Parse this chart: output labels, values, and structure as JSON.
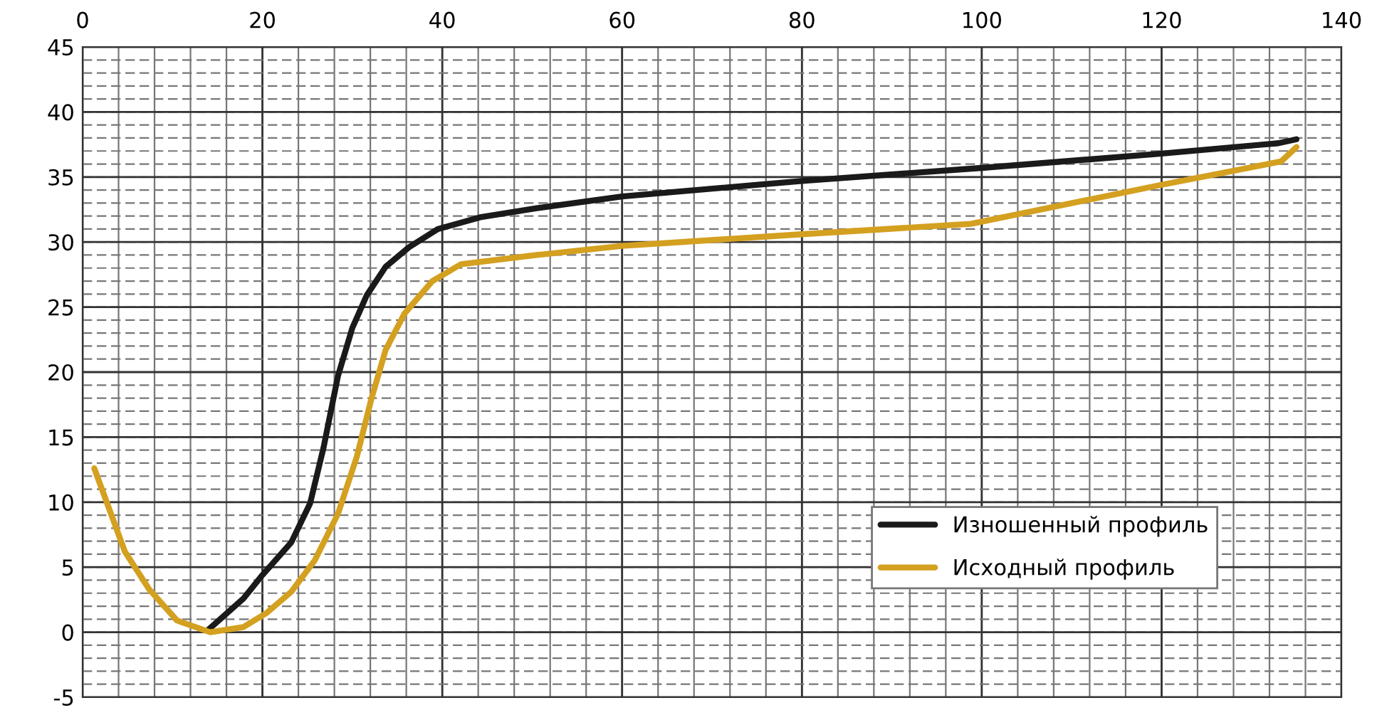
{
  "chart_data": {
    "type": "line",
    "xlim": [
      0,
      140
    ],
    "ylim": [
      -5,
      45
    ],
    "xticks": [
      0,
      20,
      40,
      60,
      80,
      100,
      120,
      140
    ],
    "yticks": [
      -5,
      0,
      5,
      10,
      15,
      20,
      25,
      30,
      35,
      40,
      45
    ],
    "grid": true,
    "legend": "right",
    "marker": "none",
    "line_style": "solid",
    "series": [
      {
        "name": "Изношенный профиль",
        "color": "#1a1a1a",
        "x": [
          14,
          17.9,
          20,
          23.2,
          25.3,
          26.8,
          28.4,
          30,
          31.6,
          33.7,
          36.3,
          39.5,
          44.2,
          50.5,
          60,
          80,
          100,
          120,
          133,
          135
        ],
        "values": [
          0.2,
          2.6,
          4.4,
          6.9,
          9.9,
          14.2,
          19.7,
          23.4,
          25.9,
          28.1,
          29.6,
          31,
          31.9,
          32.6,
          33.5,
          34.7,
          35.7,
          36.8,
          37.6,
          37.9
        ]
      },
      {
        "name": "Исходный профиль",
        "color": "#d4a020",
        "x": [
          1.3,
          4.7,
          7.4,
          10.5,
          14.2,
          17.9,
          20.5,
          23.2,
          25.8,
          28.4,
          30.5,
          32.1,
          33.7,
          35.8,
          38.9,
          42.1,
          50.5,
          60,
          80,
          98.8,
          120,
          133.3,
          135
        ],
        "values": [
          12.6,
          6.2,
          3.3,
          0.9,
          0,
          0.4,
          1.5,
          3.1,
          5.5,
          9.1,
          13.5,
          17.9,
          21.7,
          24.5,
          27,
          28.3,
          29,
          29.7,
          30.6,
          31.4,
          34.4,
          36.2,
          37.3
        ]
      }
    ]
  }
}
